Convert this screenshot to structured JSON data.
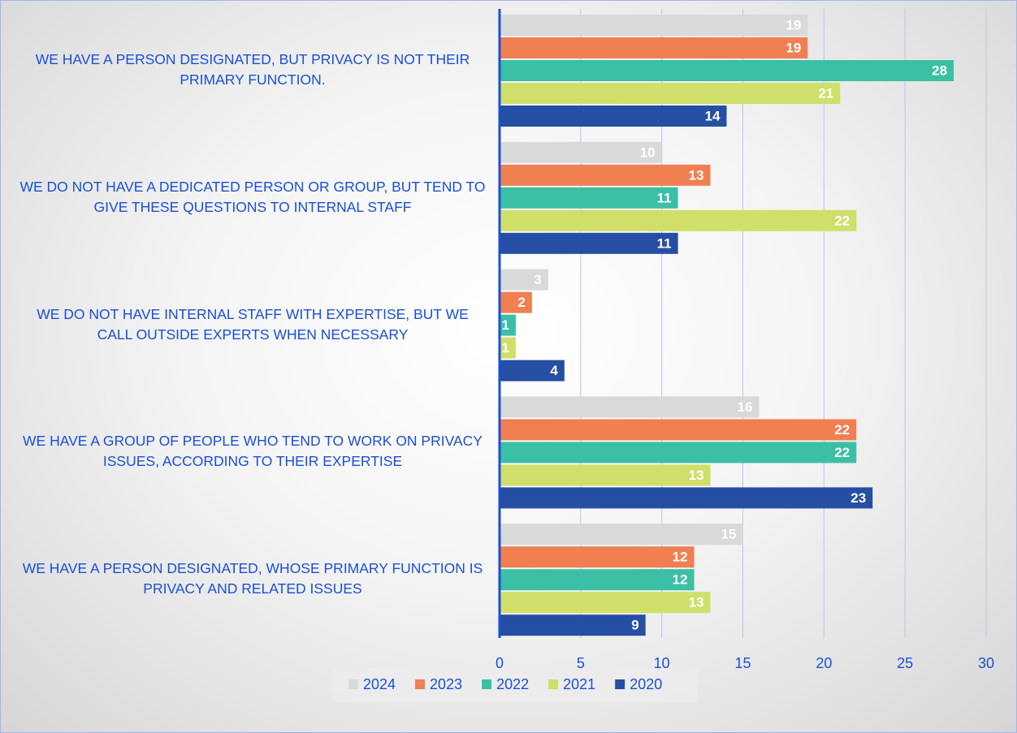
{
  "chart_data": {
    "type": "bar",
    "orientation": "horizontal",
    "categories": [
      "WE HAVE A PERSON DESIGNATED, BUT PRIVACY IS NOT THEIR PRIMARY FUNCTION.",
      "WE DO NOT HAVE A DEDICATED PERSON OR GROUP, BUT TEND TO GIVE THESE QUESTIONS TO INTERNAL STAFF",
      "WE DO NOT HAVE INTERNAL STAFF WITH EXPERTISE, BUT WE CALL OUTSIDE EXPERTS WHEN NECESSARY",
      "WE HAVE A GROUP OF PEOPLE WHO TEND TO WORK ON PRIVACY ISSUES, ACCORDING TO THEIR EXPERTISE",
      "WE HAVE A PERSON DESIGNATED, WHOSE PRIMARY FUNCTION IS PRIVACY AND RELATED ISSUES"
    ],
    "series": [
      {
        "name": "2024",
        "color": "#d9d9d9",
        "values": [
          19,
          10,
          3,
          16,
          15
        ]
      },
      {
        "name": "2023",
        "color": "#f07f52",
        "values": [
          19,
          13,
          2,
          22,
          12
        ]
      },
      {
        "name": "2022",
        "color": "#3bbfa5",
        "values": [
          28,
          11,
          1,
          22,
          12
        ]
      },
      {
        "name": "2021",
        "color": "#cfdf6a",
        "values": [
          21,
          22,
          1,
          13,
          13
        ]
      },
      {
        "name": "2020",
        "color": "#264ea3",
        "values": [
          14,
          11,
          4,
          23,
          9
        ]
      }
    ],
    "xlim": [
      0,
      30
    ],
    "xticks": [
      0,
      5,
      10,
      15,
      20,
      25,
      30
    ],
    "grid": true,
    "legend": "bottom"
  }
}
